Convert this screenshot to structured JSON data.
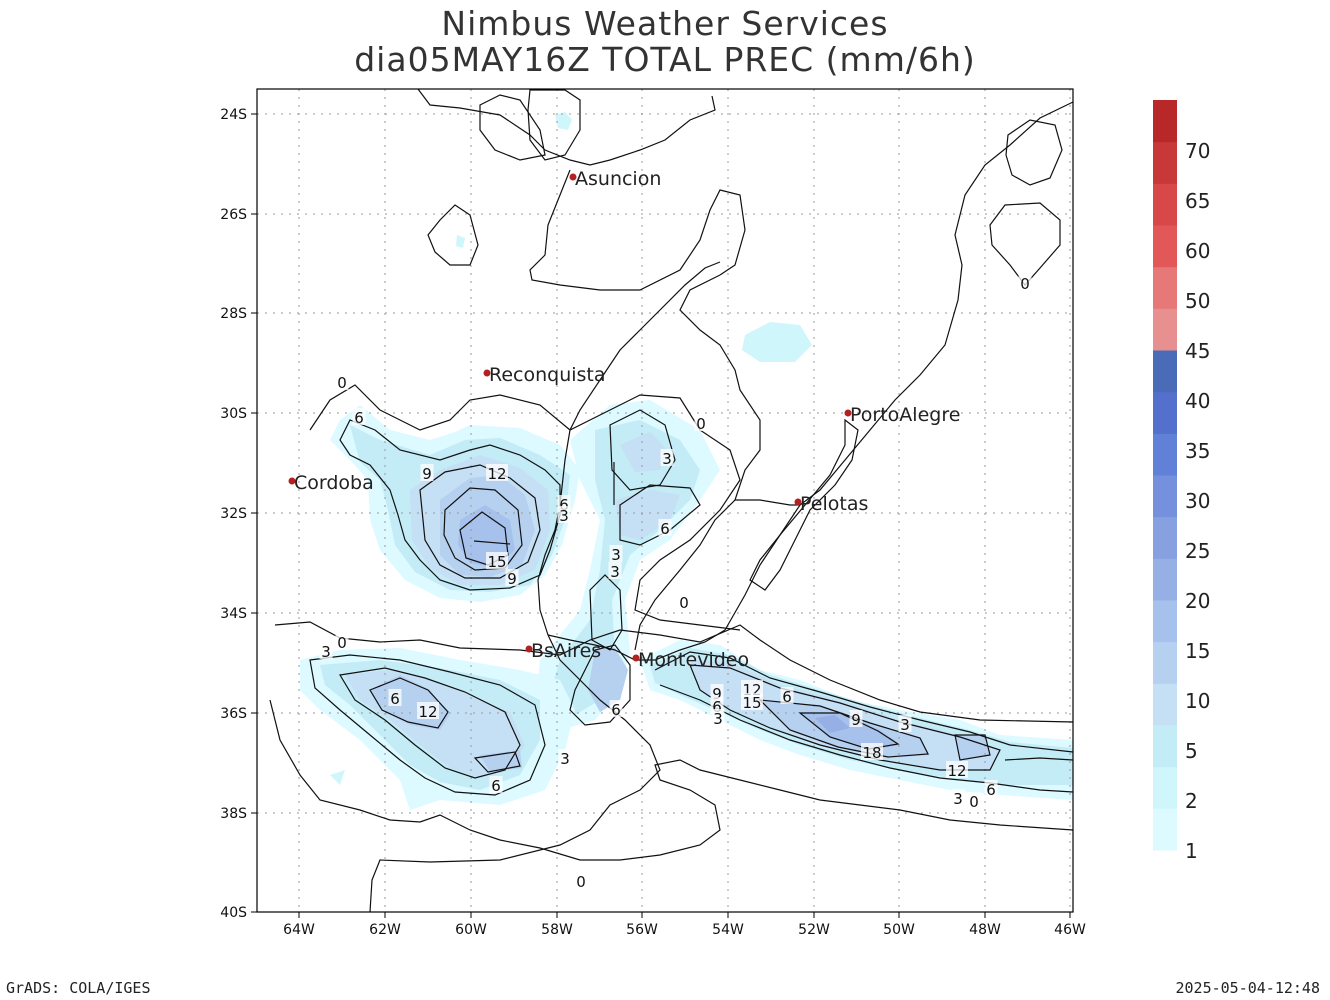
{
  "title_line1": "Nimbus Weather Services",
  "title_line2": "dia05MAY16Z TOTAL PREC (mm/6h)",
  "footer_left": "GrADS: COLA/IGES",
  "footer_right": "2025-05-04-12:48",
  "axes": {
    "lat_labels": [
      "24S",
      "26S",
      "28S",
      "30S",
      "32S",
      "34S",
      "36S",
      "38S",
      "40S"
    ],
    "lon_labels": [
      "64W",
      "62W",
      "60W",
      "58W",
      "56W",
      "54W",
      "52W",
      "50W",
      "48W",
      "46W"
    ]
  },
  "colorbar": {
    "labels": [
      "1",
      "2",
      "5",
      "10",
      "15",
      "20",
      "25",
      "30",
      "35",
      "40",
      "45",
      "50",
      "60",
      "65",
      "70"
    ],
    "colors": [
      "#dcfaff",
      "#cff6fb",
      "#c3ecf7",
      "#c5dff5",
      "#b6d0f0",
      "#a6c2ec",
      "#96b0e6",
      "#86a0e0",
      "#7590dc",
      "#6180d8",
      "#5470cc",
      "#4a6cb8",
      "#e89090",
      "#e67878",
      "#e25858",
      "#d84848",
      "#c83838",
      "#b82828"
    ]
  },
  "cities": [
    {
      "name": "Asuncion"
    },
    {
      "name": "Reconquista"
    },
    {
      "name": "PortoAlegre"
    },
    {
      "name": "Cordoba"
    },
    {
      "name": "Pelotas"
    },
    {
      "name": "BsAires"
    },
    {
      "name": "Montevideo"
    }
  ],
  "contour_labels": [
    "0",
    "6",
    "9",
    "12",
    "15",
    "9",
    "6",
    "3",
    "3",
    "6",
    "3",
    "3",
    "0",
    "0",
    "3",
    "0",
    "6",
    "12",
    "6",
    "6",
    "3",
    "9",
    "6",
    "3",
    "12",
    "15",
    "6",
    "9",
    "3",
    "18",
    "12",
    "3",
    "6",
    "0",
    "0",
    "0"
  ]
}
